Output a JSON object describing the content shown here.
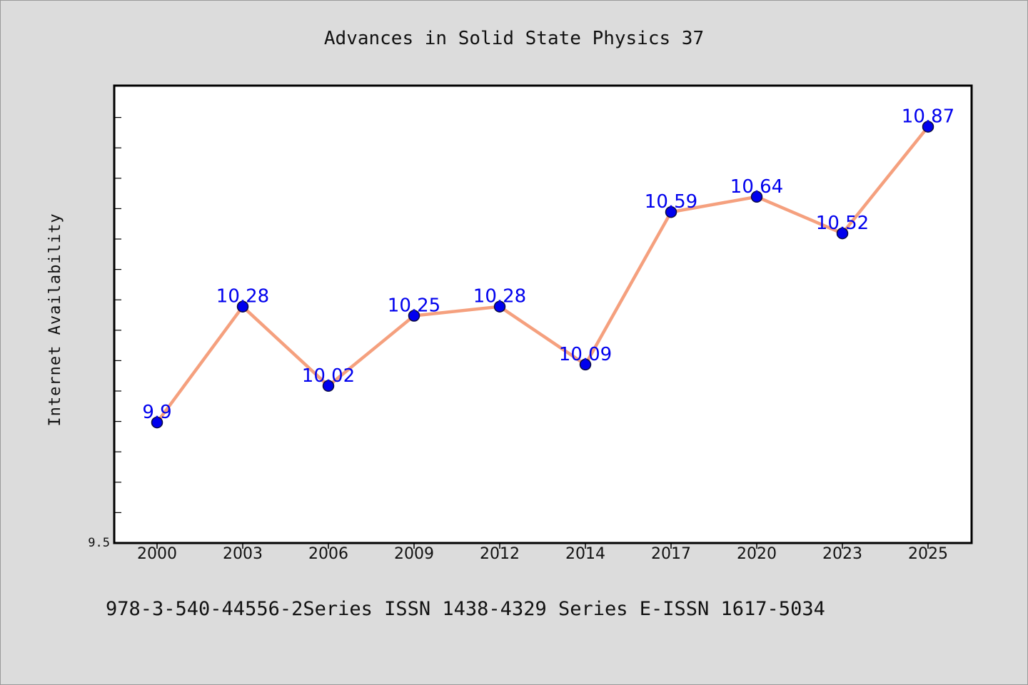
{
  "chart_data": {
    "type": "line",
    "title": "Advances in Solid State Physics 37",
    "xlabel": "",
    "ylabel": "Internet Availability",
    "categories": [
      "2000",
      "2003",
      "2006",
      "2009",
      "2012",
      "2014",
      "2017",
      "2020",
      "2023",
      "2025"
    ],
    "series": [
      {
        "values": [
          9.9,
          10.28,
          10.02,
          10.25,
          10.28,
          10.09,
          10.59,
          10.64,
          10.52,
          10.87
        ],
        "labels": [
          "9.9",
          "10.28",
          "10.02",
          "10.25",
          "10.28",
          "10.09",
          "10.59",
          "10.64",
          "10.52",
          "10.87"
        ]
      }
    ],
    "ylim": [
      9.5,
      11.0
    ],
    "y_tick_labels": [
      "9.5"
    ],
    "y_minor_tick_step": 0.1,
    "grid": false,
    "legend": "none",
    "colors": {
      "line": "#f5a07e",
      "marker": "#0000ee",
      "marker_edge": "#0a0a40",
      "data_label": "#0000ee",
      "plot_background": "#ffffff",
      "page_background": "#dcdcdc"
    }
  },
  "footer": {
    "text": "978-3-540-44556-2Series ISSN 1438-4329 Series E-ISSN 1617-5034"
  }
}
